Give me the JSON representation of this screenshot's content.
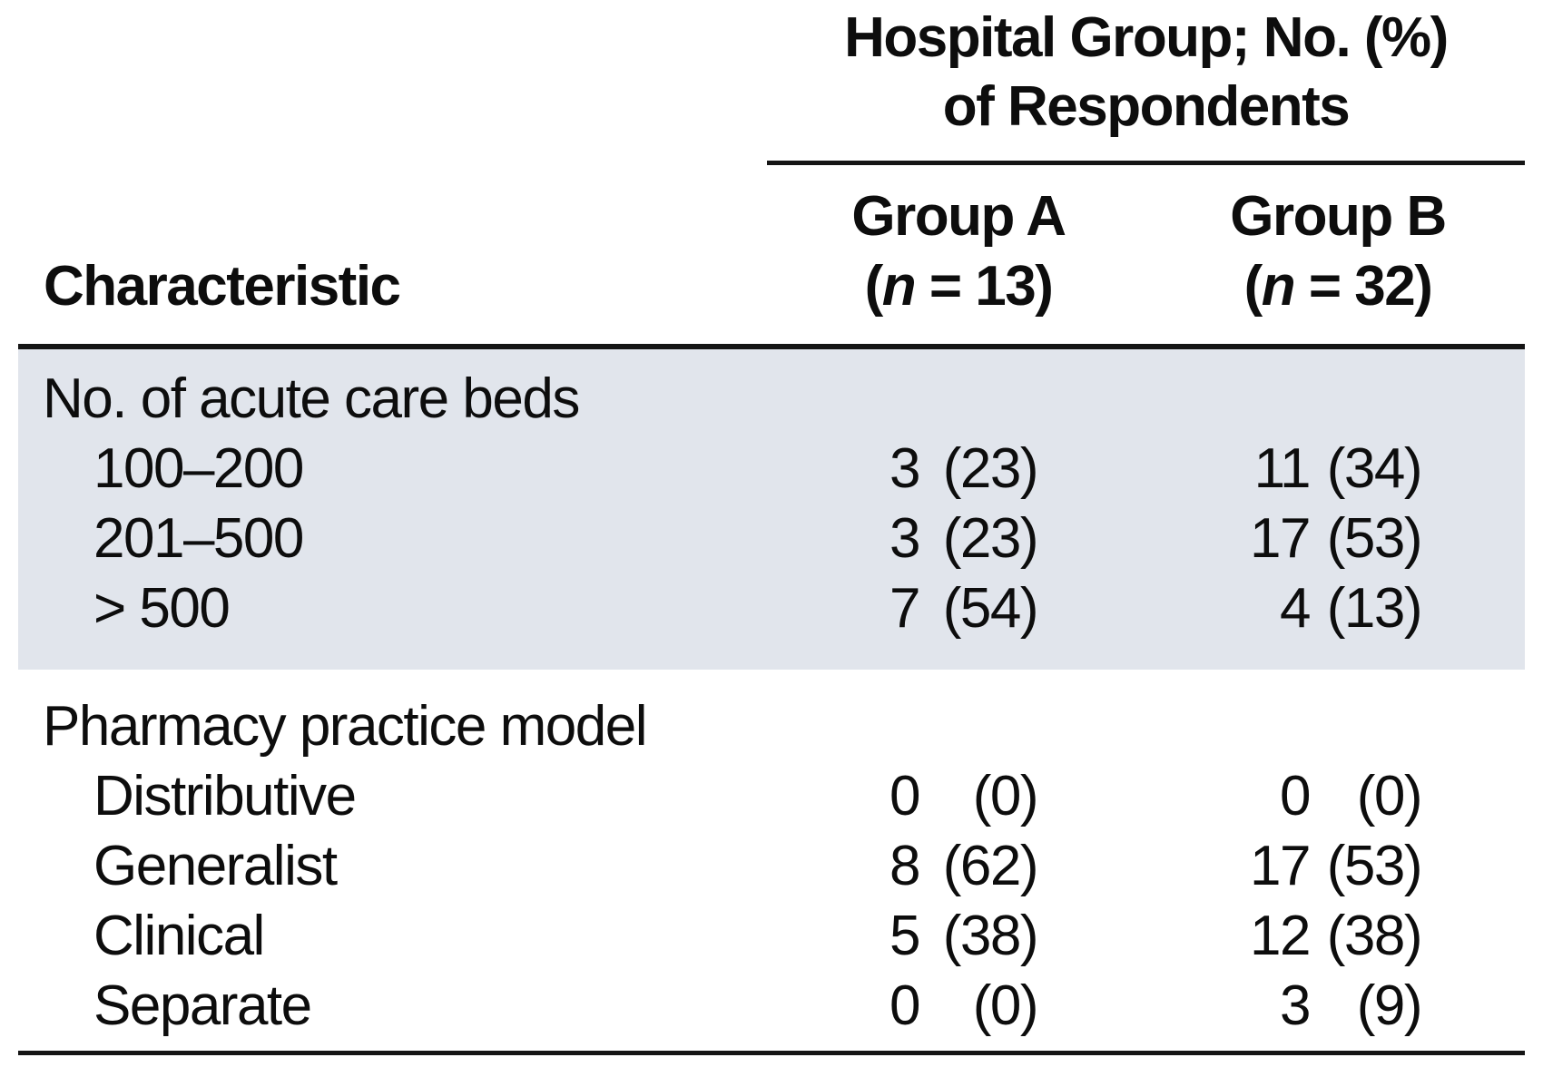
{
  "header": {
    "span_title_line1": "Hospital Group; No. (%)",
    "span_title_line2": "of Respondents",
    "characteristic": "Characteristic",
    "group_a": {
      "name": "Group A",
      "n_open": "(",
      "n_symbol": "n",
      "n_rest": " = 13)"
    },
    "group_b": {
      "name": "Group B",
      "n_open": "(",
      "n_symbol": "n",
      "n_rest": " = 32)"
    }
  },
  "sections": [
    {
      "heading": "No. of acute care beds",
      "rows": [
        {
          "label": "100–200",
          "a_count": "3",
          "a_pct": "(23)",
          "b_count": "11",
          "b_pct": "(34)"
        },
        {
          "label": "201–500",
          "a_count": "3",
          "a_pct": "(23)",
          "b_count": "17",
          "b_pct": "(53)"
        },
        {
          "label": "> 500",
          "a_count": "7",
          "a_pct": "(54)",
          "b_count": "4",
          "b_pct": "(13)"
        }
      ]
    },
    {
      "heading": "Pharmacy practice model",
      "rows": [
        {
          "label": "Distributive",
          "a_count": "0",
          "a_pct": "(0)",
          "b_count": "0",
          "b_pct": "(0)"
        },
        {
          "label": "Generalist",
          "a_count": "8",
          "a_pct": "(62)",
          "b_count": "17",
          "b_pct": "(53)"
        },
        {
          "label": "Clinical",
          "a_count": "5",
          "a_pct": "(38)",
          "b_count": "12",
          "b_pct": "(38)"
        },
        {
          "label": "Separate",
          "a_count": "0",
          "a_pct": "(0)",
          "b_count": "3",
          "b_pct": "(9)"
        }
      ]
    }
  ],
  "colors": {
    "shaded_band_background": "#e1e5ec",
    "rule": "#151515",
    "text": "#0d0d0d"
  }
}
